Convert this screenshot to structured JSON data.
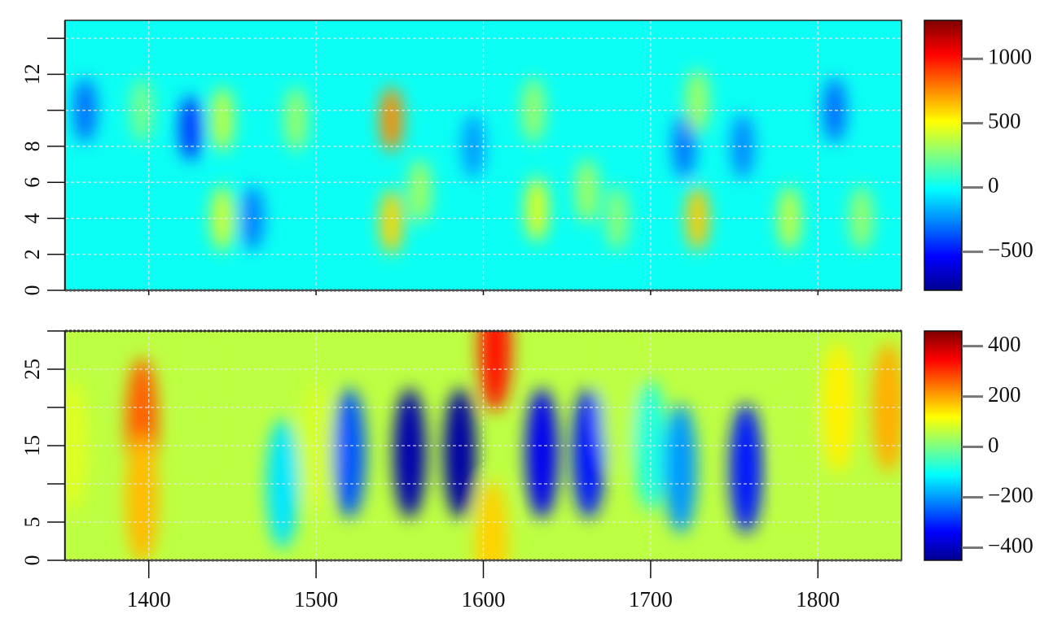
{
  "chart_data": [
    {
      "type": "heatmap",
      "title": "",
      "xlabel": "",
      "ylabel": "",
      "xlim": [
        1350,
        1850
      ],
      "ylim": [
        0,
        15
      ],
      "x_ticks": [
        "1400",
        "1500",
        "1600",
        "1700",
        "1800"
      ],
      "y_ticks": [
        "0",
        "2",
        "4",
        "6",
        "8",
        "10",
        "12",
        "14"
      ],
      "y_tick_labels": [
        "0",
        "2",
        "4",
        "6",
        "8",
        "",
        "12",
        ""
      ],
      "grid": true,
      "colorbar": {
        "range": [
          -800,
          1300
        ],
        "ticks": [
          "1000",
          "500",
          "0",
          "−500"
        ],
        "tick_values": [
          1000,
          500,
          0,
          -500
        ],
        "colors": [
          "#00008f",
          "#0000ff",
          "#0080ff",
          "#00ffff",
          "#80ff80",
          "#ffff00",
          "#ff8000",
          "#ff0000",
          "#800000"
        ]
      },
      "background_value": 10,
      "anomalies": [
        {
          "x": 1362,
          "y": 10,
          "value": -320
        },
        {
          "x": 1396,
          "y": 10,
          "value": 230
        },
        {
          "x": 1425,
          "y": 9,
          "value": -430
        },
        {
          "x": 1444,
          "y": 9.5,
          "value": 380
        },
        {
          "x": 1444,
          "y": 4,
          "value": 420
        },
        {
          "x": 1462,
          "y": 4,
          "value": -280
        },
        {
          "x": 1488,
          "y": 9.5,
          "value": 300
        },
        {
          "x": 1545,
          "y": 9.5,
          "value": 750
        },
        {
          "x": 1545,
          "y": 3.8,
          "value": 600
        },
        {
          "x": 1562,
          "y": 5.5,
          "value": 320
        },
        {
          "x": 1594,
          "y": 8,
          "value": -220
        },
        {
          "x": 1630,
          "y": 10,
          "value": 300
        },
        {
          "x": 1632,
          "y": 4.5,
          "value": 450
        },
        {
          "x": 1662,
          "y": 5.5,
          "value": 320
        },
        {
          "x": 1680,
          "y": 4,
          "value": 270
        },
        {
          "x": 1720,
          "y": 8,
          "value": -300
        },
        {
          "x": 1728,
          "y": 10.5,
          "value": 320
        },
        {
          "x": 1728,
          "y": 4,
          "value": 620
        },
        {
          "x": 1755,
          "y": 8,
          "value": -260
        },
        {
          "x": 1783,
          "y": 4,
          "value": 380
        },
        {
          "x": 1810,
          "y": 10,
          "value": -320
        },
        {
          "x": 1826,
          "y": 4,
          "value": 300
        }
      ]
    },
    {
      "type": "heatmap",
      "title": "",
      "xlabel": "",
      "ylabel": "",
      "xlim": [
        1350,
        1850
      ],
      "ylim": [
        0,
        30
      ],
      "x_ticks": [
        "1400",
        "1500",
        "1600",
        "1700",
        "1800"
      ],
      "x_tick_values": [
        1400,
        1500,
        1600,
        1700,
        1800
      ],
      "y_ticks": [
        "0",
        "5",
        "10",
        "15",
        "20",
        "25",
        "30"
      ],
      "y_tick_labels": [
        "0",
        "5",
        "",
        "15",
        "",
        "25",
        ""
      ],
      "grid": true,
      "colorbar": {
        "range": [
          -450,
          460
        ],
        "ticks": [
          "400",
          "200",
          "0",
          "−200",
          "−400"
        ],
        "tick_values": [
          400,
          200,
          0,
          -200,
          -400
        ],
        "colors": [
          "#00008f",
          "#0000ff",
          "#0080ff",
          "#00ffff",
          "#80ff80",
          "#ffff00",
          "#ff8000",
          "#ff0000",
          "#800000"
        ]
      },
      "background_value": 60,
      "anomalies": [
        {
          "x": 1354,
          "y": 15,
          "value": 90
        },
        {
          "x": 1396,
          "y": 18,
          "value": 260
        },
        {
          "x": 1396,
          "y": 8,
          "value": 180
        },
        {
          "x": 1430,
          "y": 20,
          "value": 60
        },
        {
          "x": 1480,
          "y": 10,
          "value": -130
        },
        {
          "x": 1500,
          "y": 15,
          "value": 80
        },
        {
          "x": 1520,
          "y": 14,
          "value": -260
        },
        {
          "x": 1556,
          "y": 14,
          "value": -420
        },
        {
          "x": 1586,
          "y": 14,
          "value": -430
        },
        {
          "x": 1607,
          "y": 28,
          "value": 330
        },
        {
          "x": 1605,
          "y": 2,
          "value": 160
        },
        {
          "x": 1635,
          "y": 14,
          "value": -350
        },
        {
          "x": 1663,
          "y": 14,
          "value": -320
        },
        {
          "x": 1680,
          "y": 20,
          "value": 60
        },
        {
          "x": 1700,
          "y": 15,
          "value": -80
        },
        {
          "x": 1718,
          "y": 12,
          "value": -200
        },
        {
          "x": 1757,
          "y": 12,
          "value": -320
        },
        {
          "x": 1790,
          "y": 14,
          "value": 60
        },
        {
          "x": 1812,
          "y": 20,
          "value": 130
        },
        {
          "x": 1842,
          "y": 20,
          "value": 190
        }
      ]
    }
  ]
}
